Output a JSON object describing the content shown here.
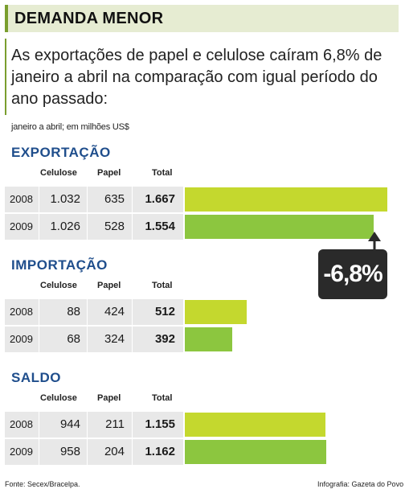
{
  "header": {
    "title": "DEMANDA MENOR"
  },
  "subtitle": "As exportações de papel e celulose caíram 6,8% de janeiro a abril na comparação com igual período do ano passado:",
  "unit_note": "janeiro a abril; em milhões US$",
  "columns": {
    "celulose": "Celulose",
    "papel": "Papel",
    "total": "Total"
  },
  "callout": "-6,8%",
  "footer": {
    "source": "Fonte: Secex/Bracelpa.",
    "credit": "Infografia: Gazeta do Povo"
  },
  "colors": {
    "bar_light": "#c4d82e",
    "bar_dark": "#8cc63f",
    "section_title": "#1f4e8c",
    "header_bg": "#e6ecd2"
  },
  "chart_data": {
    "type": "table",
    "sections": [
      {
        "title": "EXPORTAÇÃO",
        "rows": [
          {
            "year": "2008",
            "celulose": "1.032",
            "papel": "635",
            "total": "1.667",
            "value": 1667
          },
          {
            "year": "2009",
            "celulose": "1.026",
            "papel": "528",
            "total": "1.554",
            "value": 1554
          }
        ]
      },
      {
        "title": "IMPORTAÇÃO",
        "rows": [
          {
            "year": "2008",
            "celulose": "88",
            "papel": "424",
            "total": "512",
            "value": 512
          },
          {
            "year": "2009",
            "celulose": "68",
            "papel": "324",
            "total": "392",
            "value": 392
          }
        ]
      },
      {
        "title": "SALDO",
        "rows": [
          {
            "year": "2008",
            "celulose": "944",
            "papel": "211",
            "total": "1.155",
            "value": 1155
          },
          {
            "year": "2009",
            "celulose": "958",
            "papel": "204",
            "total": "1.162",
            "value": 1162
          }
        ]
      }
    ],
    "bar_max": 1667
  }
}
